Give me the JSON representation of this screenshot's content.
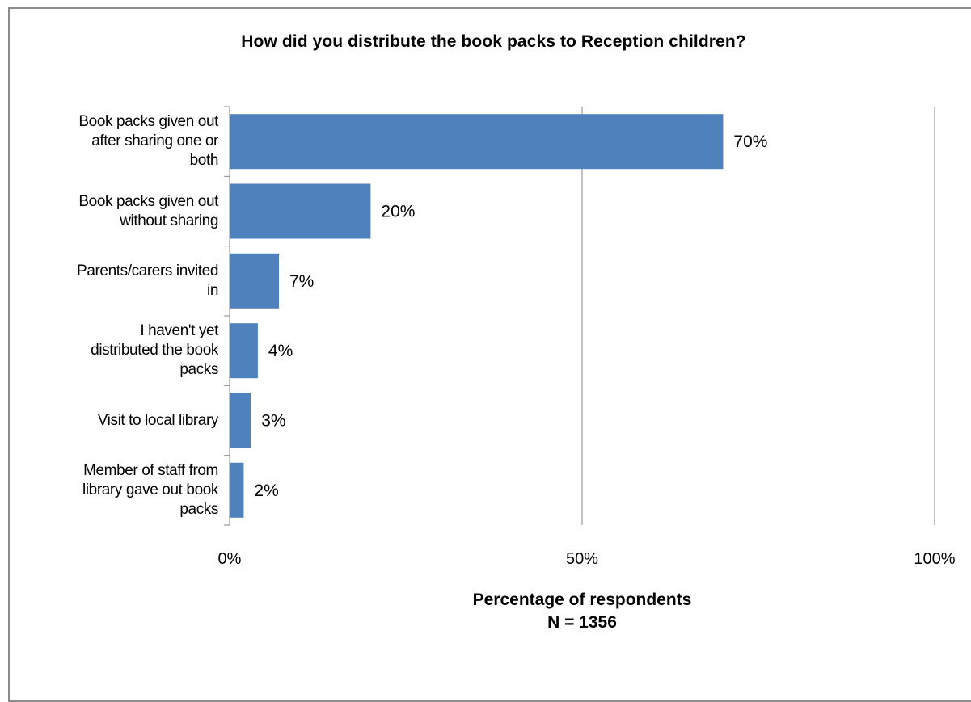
{
  "chart_data": {
    "type": "bar",
    "orientation": "horizontal",
    "title": "How did you distribute the book packs to Reception children?",
    "categories": [
      "Book packs given out after sharing one or both",
      "Book packs given out without sharing",
      "Parents/carers invited in",
      "I haven't yet distributed the book packs",
      "Visit to local library",
      "Member of staff from library gave out book packs"
    ],
    "category_lines": [
      [
        "Book packs given out",
        "after sharing one or",
        "both"
      ],
      [
        "Book packs given out",
        "without sharing"
      ],
      [
        "Parents/carers invited",
        "in"
      ],
      [
        "I haven't yet",
        "distributed the book",
        "packs"
      ],
      [
        "Visit to local library"
      ],
      [
        "Member of staff from",
        "library gave out book",
        "packs"
      ]
    ],
    "values": [
      70,
      20,
      7,
      4,
      3,
      2
    ],
    "data_labels": [
      "70%",
      "20%",
      "7%",
      "4%",
      "3%",
      "2%"
    ],
    "xlim": [
      0,
      100
    ],
    "x_ticks": [
      0,
      50,
      100
    ],
    "x_tick_labels": [
      "0%",
      "50%",
      "100%"
    ],
    "xlabel": "Percentage of respondents",
    "xlabel_sub": "N = 1356",
    "ylabel": "",
    "grid": true,
    "legend": "none",
    "colors": {
      "bar": "#4f81bd",
      "gridline": "#868686",
      "axis": "#868686",
      "frame": "#8c8c8c"
    }
  }
}
